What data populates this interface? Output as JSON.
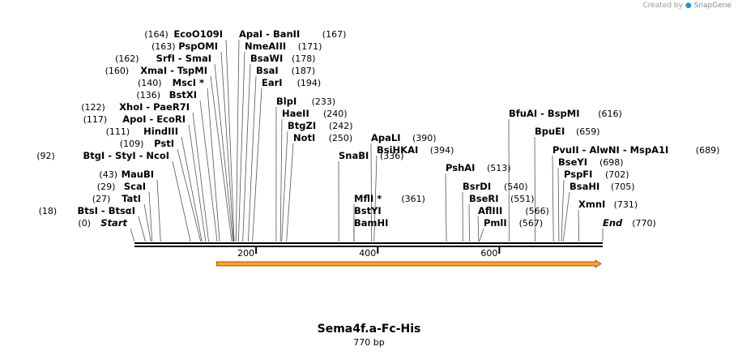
{
  "credit": {
    "prefix": "Created by",
    "brand": "SnapGene"
  },
  "title": "Sema4f.a-Fc-His",
  "subtitle": "770 bp",
  "sequence_length": 770,
  "colors": {
    "feature_fill": "#f5a623",
    "feature_stroke": "#a0522d",
    "line": "#000000"
  },
  "ticks": [
    {
      "pos": 200,
      "label": "200"
    },
    {
      "pos": 400,
      "label": "400"
    },
    {
      "pos": 600,
      "label": "600"
    }
  ],
  "feature": {
    "start": 135,
    "end": 770,
    "direction": "forward"
  },
  "labels": [
    {
      "name": "Start",
      "pos": 0,
      "pos_text": "(0)",
      "italic": true
    },
    {
      "name": "BtsI - BtsαI",
      "pos": 18,
      "pos_text": "(18)"
    },
    {
      "name": "TatI",
      "pos": 27,
      "pos_text": "(27)"
    },
    {
      "name": "ScaI",
      "pos": 29,
      "pos_text": "(29)"
    },
    {
      "name": "MauBI",
      "pos": 43,
      "pos_text": "(43)"
    },
    {
      "name": "BtgI - StyI - NcoI",
      "pos": 92,
      "pos_text": "(92)"
    },
    {
      "name": "PstI",
      "pos": 109,
      "pos_text": "(109)"
    },
    {
      "name": "HindIII",
      "pos": 111,
      "pos_text": "(111)"
    },
    {
      "name": "ApoI - EcoRI",
      "pos": 117,
      "pos_text": "(117)"
    },
    {
      "name": "XhoI - PaeR7I",
      "pos": 122,
      "pos_text": "(122)"
    },
    {
      "name": "BstXI",
      "pos": 136,
      "pos_text": "(136)"
    },
    {
      "name": "MscI *",
      "pos": 140,
      "pos_text": "(140)"
    },
    {
      "name": "XmaI - TspMI",
      "pos": 160,
      "pos_text": "(160)"
    },
    {
      "name": "SrfI - SmaI",
      "pos": 162,
      "pos_text": "(162)"
    },
    {
      "name": "PspOMI",
      "pos": 163,
      "pos_text": "(163)"
    },
    {
      "name": "EcoO109I",
      "pos": 164,
      "pos_text": "(164)"
    },
    {
      "name": "ApaI - BanII",
      "pos": 167,
      "pos_text": "(167)"
    },
    {
      "name": "NmeAIII",
      "pos": 171,
      "pos_text": "(171)"
    },
    {
      "name": "BsaWI",
      "pos": 178,
      "pos_text": "(178)"
    },
    {
      "name": "BsaI",
      "pos": 187,
      "pos_text": "(187)"
    },
    {
      "name": "EarI",
      "pos": 194,
      "pos_text": "(194)"
    },
    {
      "name": "BlpI",
      "pos": 233,
      "pos_text": "(233)"
    },
    {
      "name": "HaeII",
      "pos": 240,
      "pos_text": "(240)"
    },
    {
      "name": "BtgZI",
      "pos": 242,
      "pos_text": "(242)"
    },
    {
      "name": "NotI",
      "pos": 250,
      "pos_text": "(250)"
    },
    {
      "name": "SnaBI",
      "pos": 336,
      "pos_text": "(336)"
    },
    {
      "name": "BamHI",
      "pos": 361,
      "pos_text": ""
    },
    {
      "name": "BstYI",
      "pos": 361,
      "pos_text": ""
    },
    {
      "name": "MflI *",
      "pos": 361,
      "pos_text": "(361)"
    },
    {
      "name": "ApaLI",
      "pos": 390,
      "pos_text": "(390)"
    },
    {
      "name": "BsiHKAI",
      "pos": 394,
      "pos_text": "(394)"
    },
    {
      "name": "PshAI",
      "pos": 513,
      "pos_text": "(513)"
    },
    {
      "name": "BsrDI",
      "pos": 540,
      "pos_text": "(540)"
    },
    {
      "name": "BseRI",
      "pos": 551,
      "pos_text": "(551)"
    },
    {
      "name": "AflIII",
      "pos": 566,
      "pos_text": "(566)"
    },
    {
      "name": "PmlI",
      "pos": 567,
      "pos_text": "(567)"
    },
    {
      "name": "BfuAI - BspMI",
      "pos": 616,
      "pos_text": "(616)"
    },
    {
      "name": "BpuEI",
      "pos": 659,
      "pos_text": "(659)"
    },
    {
      "name": "PvuII - AlwNI - MspA1I",
      "pos": 689,
      "pos_text": "(689)"
    },
    {
      "name": "BseYI",
      "pos": 698,
      "pos_text": "(698)"
    },
    {
      "name": "PspFI",
      "pos": 702,
      "pos_text": "(702)"
    },
    {
      "name": "BsaHI",
      "pos": 705,
      "pos_text": "(705)"
    },
    {
      "name": "XmnI",
      "pos": 731,
      "pos_text": "(731)"
    },
    {
      "name": "End",
      "pos": 770,
      "pos_text": "(770)",
      "italic": true
    }
  ]
}
